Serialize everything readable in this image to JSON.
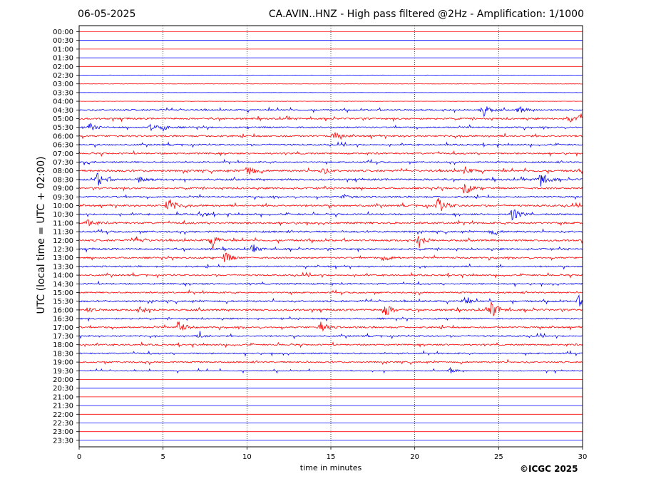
{
  "header": {
    "date": "06-05-2025",
    "title": "CA.AVIN..HNZ - High pass filtered @2Hz - Amplification: 1/1000"
  },
  "chart_data": {
    "type": "line",
    "title": "CA.AVIN..HNZ - High pass filtered @2Hz - Amplification: 1/1000",
    "xlabel": "time in minutes",
    "ylabel": "UTC (local time = UTC + 02:00)",
    "xlim": [
      0,
      30
    ],
    "x_ticks": [
      "0",
      "5",
      "10",
      "15",
      "20",
      "25",
      "30"
    ],
    "row_labels": [
      "00:00",
      "00:30",
      "01:00",
      "01:30",
      "02:00",
      "02:30",
      "03:00",
      "03:30",
      "04:00",
      "04:30",
      "05:00",
      "05:30",
      "06:00",
      "06:30",
      "07:00",
      "07:30",
      "08:00",
      "08:30",
      "09:00",
      "09:30",
      "10:00",
      "10:30",
      "11:00",
      "11:30",
      "12:00",
      "12:30",
      "13:00",
      "13:30",
      "14:00",
      "14:30",
      "15:00",
      "15:30",
      "16:00",
      "16:30",
      "17:00",
      "17:30",
      "18:00",
      "18:30",
      "19:00",
      "19:30",
      "20:00",
      "20:30",
      "21:00",
      "21:30",
      "22:00",
      "22:30",
      "23:00",
      "23:30"
    ],
    "colors": {
      "even_rows": "#ff0000",
      "odd_rows": "#0000ff"
    },
    "grid": "vertical dotted at x = 5, 10, 15, 20, 25",
    "noise_level": [
      0,
      0,
      0,
      0,
      0,
      0.2,
      0.3,
      0.1,
      0.2,
      1,
      1.2,
      1,
      1.2,
      1,
      1.1,
      1,
      1.4,
      1.3,
      1.2,
      1.1,
      1.3,
      1.1,
      1.3,
      1.2,
      1.3,
      1.2,
      1.1,
      1,
      1,
      1,
      1,
      1.2,
      1.3,
      1,
      1.1,
      1,
      1,
      1,
      1,
      0.6,
      0,
      0,
      0,
      0,
      0,
      0,
      0,
      0
    ],
    "events": [
      {
        "row": "04:30",
        "x": 24.0,
        "amp": 12
      },
      {
        "row": "04:30",
        "x": 26.2,
        "amp": 5
      },
      {
        "row": "05:00",
        "x": 29.2,
        "amp": 5
      },
      {
        "row": "05:00",
        "x": 29.9,
        "amp": 6
      },
      {
        "row": "05:30",
        "x": 0.6,
        "amp": 5
      },
      {
        "row": "05:30",
        "x": 4.2,
        "amp": 6
      },
      {
        "row": "05:30",
        "x": 5.0,
        "amp": 4
      },
      {
        "row": "06:00",
        "x": 15.2,
        "amp": 5
      },
      {
        "row": "07:30",
        "x": 0.3,
        "amp": 3
      },
      {
        "row": "08:00",
        "x": 10.0,
        "amp": 10
      },
      {
        "row": "08:00",
        "x": 14.5,
        "amp": 5
      },
      {
        "row": "08:00",
        "x": 23.0,
        "amp": 5
      },
      {
        "row": "08:30",
        "x": 1.1,
        "amp": 10
      },
      {
        "row": "08:30",
        "x": 3.6,
        "amp": 5
      },
      {
        "row": "08:30",
        "x": 27.4,
        "amp": 16
      },
      {
        "row": "09:00",
        "x": 23.0,
        "amp": 10
      },
      {
        "row": "09:30",
        "x": 15.8,
        "amp": 4
      },
      {
        "row": "10:00",
        "x": 5.3,
        "amp": 12
      },
      {
        "row": "10:00",
        "x": 21.4,
        "amp": 12
      },
      {
        "row": "10:30",
        "x": 7.2,
        "amp": 4
      },
      {
        "row": "10:30",
        "x": 25.8,
        "amp": 12
      },
      {
        "row": "11:00",
        "x": 0.5,
        "amp": 5
      },
      {
        "row": "11:30",
        "x": 24.6,
        "amp": 4
      },
      {
        "row": "12:00",
        "x": 7.9,
        "amp": 10
      },
      {
        "row": "12:00",
        "x": 20.2,
        "amp": 10
      },
      {
        "row": "12:00",
        "x": 3.4,
        "amp": 4
      },
      {
        "row": "12:30",
        "x": 10.4,
        "amp": 4
      },
      {
        "row": "13:00",
        "x": 8.7,
        "amp": 8
      },
      {
        "row": "13:00",
        "x": 18.2,
        "amp": 5
      },
      {
        "row": "15:30",
        "x": 22.9,
        "amp": 5
      },
      {
        "row": "15:30",
        "x": 29.8,
        "amp": 7
      },
      {
        "row": "16:00",
        "x": 3.6,
        "amp": 5
      },
      {
        "row": "16:00",
        "x": 18.2,
        "amp": 11
      },
      {
        "row": "16:00",
        "x": 24.6,
        "amp": 14
      },
      {
        "row": "16:00",
        "x": 0.5,
        "amp": 4
      },
      {
        "row": "17:00",
        "x": 5.9,
        "amp": 11
      },
      {
        "row": "17:00",
        "x": 14.4,
        "amp": 9
      },
      {
        "row": "17:30",
        "x": 7.2,
        "amp": 4
      },
      {
        "row": "19:30",
        "x": 22.1,
        "amp": 4
      }
    ]
  },
  "footer": {
    "copyright": "©ICGC 2025"
  }
}
